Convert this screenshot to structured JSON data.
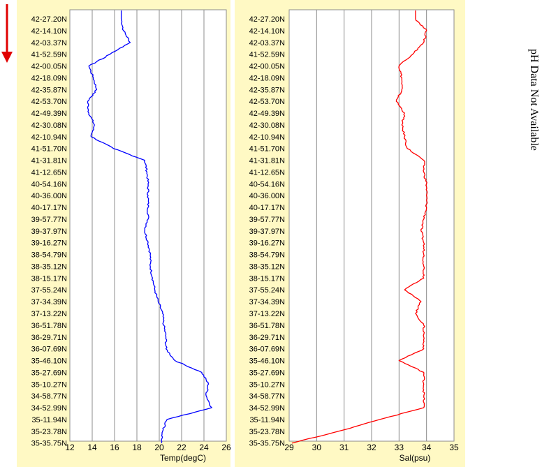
{
  "side_note": "pH Data Not Available",
  "colors": {
    "temp_line": "#0000ff",
    "sal_line": "#ff0000",
    "panel_bg": "#fff9c4",
    "arrow": "#e00000"
  },
  "indicators": {
    "direction_arrow_icon": "down-arrow-icon"
  },
  "chart_data": [
    {
      "type": "line",
      "orientation": "vertical",
      "xlabel": "Temp(degC)",
      "xlim": [
        12,
        26
      ],
      "xticks": [
        12,
        14,
        16,
        18,
        20,
        22,
        24,
        26
      ],
      "ylabel": "",
      "y_categories": [
        "42-27.20N",
        "42-14.10N",
        "42-03.37N",
        "41-52.59N",
        "42-00.05N",
        "42-18.09N",
        "42-35.87N",
        "42-53.70N",
        "42-49.39N",
        "42-30.08N",
        "42-10.94N",
        "41-51.70N",
        "41-31.81N",
        "41-12.65N",
        "40-54.16N",
        "40-36.00N",
        "40-17.17N",
        "39-57.77N",
        "39-37.97N",
        "39-16.27N",
        "38-54.79N",
        "38-35.12N",
        "38-15.17N",
        "37-55.24N",
        "37-34.39N",
        "37-13.22N",
        "36-51.78N",
        "36-29.71N",
        "36-07.69N",
        "35-46.10N",
        "35-27.69N",
        "35-10.27N",
        "34-58.77N",
        "34-52.99N",
        "35-11.94N",
        "35-23.78N",
        "35-35.75N"
      ],
      "series": [
        {
          "color": "#0000ff",
          "values": [
            16.6,
            16.8,
            17.4,
            15.6,
            13.7,
            14.1,
            14.4,
            13.6,
            13.7,
            14.2,
            13.9,
            15.9,
            18.7,
            18.9,
            19.0,
            19.0,
            19.0,
            19.0,
            18.7,
            19.0,
            19.2,
            19.2,
            19.4,
            19.6,
            19.9,
            20.3,
            20.4,
            20.6,
            20.6,
            21.4,
            23.8,
            24.4,
            24.2,
            24.7,
            20.7,
            20.3,
            20.2
          ]
        }
      ]
    },
    {
      "type": "line",
      "orientation": "vertical",
      "xlabel": "Sal(psu)",
      "xlim": [
        29,
        35
      ],
      "xticks": [
        29,
        30,
        31,
        32,
        33,
        34,
        35
      ],
      "ylabel": "",
      "y_categories": [
        "42-27.20N",
        "42-14.10N",
        "42-03.37N",
        "41-52.59N",
        "42-00.05N",
        "42-18.09N",
        "42-35.87N",
        "42-53.70N",
        "42-49.39N",
        "42-30.08N",
        "42-10.94N",
        "41-51.70N",
        "41-31.81N",
        "41-12.65N",
        "40-54.16N",
        "40-36.00N",
        "40-17.17N",
        "39-57.77N",
        "39-37.97N",
        "39-16.27N",
        "38-54.79N",
        "38-35.12N",
        "38-15.17N",
        "37-55.24N",
        "37-34.39N",
        "37-13.22N",
        "36-51.78N",
        "36-29.71N",
        "36-07.69N",
        "35-46.10N",
        "35-27.69N",
        "35-10.27N",
        "34-58.77N",
        "34-52.99N",
        "35-11.94N",
        "35-23.78N",
        "35-35.75N"
      ],
      "series": [
        {
          "color": "#ff0000",
          "values": [
            33.6,
            34.0,
            33.9,
            33.5,
            33.0,
            33.1,
            33.1,
            32.9,
            33.2,
            33.1,
            33.2,
            33.3,
            33.9,
            33.9,
            34.0,
            34.0,
            34.0,
            33.9,
            33.8,
            33.9,
            33.9,
            33.9,
            33.9,
            33.2,
            33.8,
            33.6,
            33.9,
            33.9,
            33.9,
            33.0,
            33.9,
            33.9,
            33.9,
            33.9,
            32.3,
            30.8,
            29.1
          ]
        }
      ]
    }
  ]
}
